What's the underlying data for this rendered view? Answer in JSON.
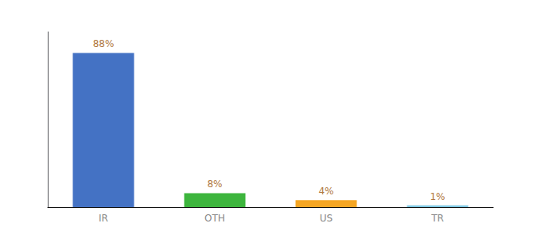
{
  "chart_data": {
    "type": "bar",
    "categories": [
      "IR",
      "OTH",
      "US",
      "TR"
    ],
    "values": [
      88,
      8,
      4,
      1
    ],
    "value_labels": [
      "88%",
      "8%",
      "4%",
      "1%"
    ],
    "colors": [
      "#4472c4",
      "#3db53d",
      "#f5a623",
      "#7ec8e3"
    ],
    "ylim": [
      0,
      100
    ],
    "grid": false,
    "tick_labels": "x",
    "data_labels": true
  }
}
